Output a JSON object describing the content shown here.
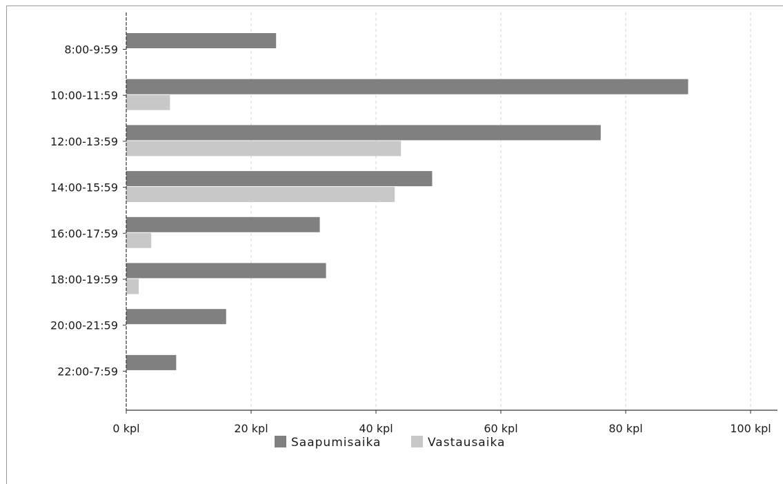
{
  "chart_data": {
    "type": "bar",
    "orientation": "horizontal",
    "categories": [
      "8:00-9:59",
      "10:00-11:59",
      "12:00-13:59",
      "14:00-15:59",
      "16:00-17:59",
      "18:00-19:59",
      "20:00-21:59",
      "22:00-7:59"
    ],
    "series": [
      {
        "name": "Saapumisaika",
        "values": [
          24,
          90,
          76,
          49,
          31,
          32,
          16,
          8
        ],
        "color": "#808080"
      },
      {
        "name": "Vastausaika",
        "values": [
          0,
          7,
          44,
          43,
          4,
          2,
          0,
          0
        ],
        "color": "#c8c8c8"
      }
    ],
    "xlim": [
      0,
      104
    ],
    "x_ticks": [
      0,
      20,
      40,
      60,
      80,
      100
    ],
    "x_tick_labels": [
      "0 kpl",
      "20 kpl",
      "40 kpl",
      "60 kpl",
      "80 kpl",
      "100 kpl"
    ],
    "grid": true,
    "legend_position": "bottom-center"
  }
}
